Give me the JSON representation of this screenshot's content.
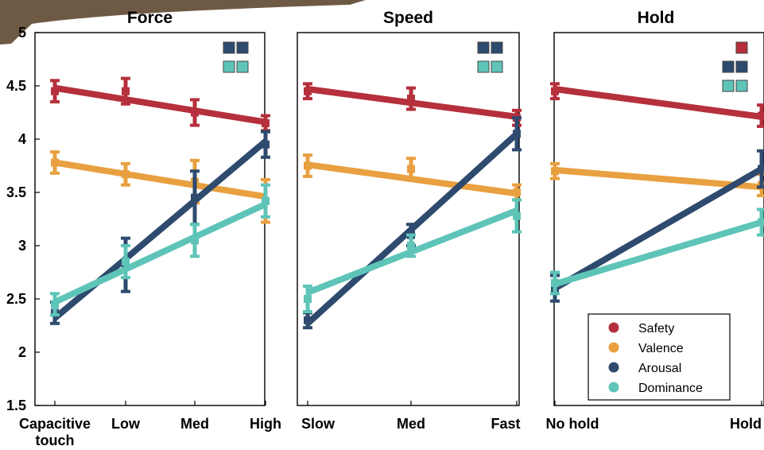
{
  "colors": {
    "Safety": "#B5303C",
    "Valence": "#E8A040",
    "Arousal": "#2E4A6E",
    "Dominance": "#5EC4B8",
    "background_artifact": "#6E5A44"
  },
  "legend": {
    "items": [
      "Safety",
      "Valence",
      "Arousal",
      "Dominance"
    ],
    "placement": "bottom-right of Hold panel"
  },
  "chart_data": [
    {
      "type": "line",
      "title": "Force",
      "categories": [
        "Capacitive touch",
        "Low",
        "Med",
        "High"
      ],
      "ylim": [
        1.5,
        5
      ],
      "yticks": [
        "5",
        "4.5",
        "4",
        "3.5",
        "3",
        "2.5",
        "2",
        "1.5"
      ],
      "series": [
        {
          "name": "Safety",
          "values": [
            4.45,
            4.45,
            4.25,
            4.15
          ],
          "err": [
            0.1,
            0.12,
            0.12,
            0.07
          ],
          "fit": [
            4.48,
            4.16
          ]
        },
        {
          "name": "Valence",
          "values": [
            3.78,
            3.67,
            3.6,
            3.42
          ],
          "err": [
            0.1,
            0.1,
            0.2,
            0.2
          ],
          "fit": [
            3.78,
            3.46
          ]
        },
        {
          "name": "Arousal",
          "values": [
            2.37,
            2.82,
            3.45,
            3.95
          ],
          "err": [
            0.1,
            0.25,
            0.25,
            0.12
          ],
          "fit": [
            2.32,
            3.98
          ]
        },
        {
          "name": "Dominance",
          "values": [
            2.45,
            2.85,
            3.05,
            3.42
          ],
          "err": [
            0.1,
            0.15,
            0.15,
            0.15
          ],
          "fit": [
            2.47,
            3.39
          ]
        }
      ],
      "significance_marks": [
        [
          "Arousal",
          "Arousal"
        ],
        [
          "Dominance",
          "Dominance"
        ]
      ]
    },
    {
      "type": "line",
      "title": "Speed",
      "categories": [
        "Slow",
        "Med",
        "Fast"
      ],
      "ylim": [
        1.5,
        5
      ],
      "series": [
        {
          "name": "Safety",
          "values": [
            4.45,
            4.38,
            4.2
          ],
          "err": [
            0.07,
            0.1,
            0.07
          ],
          "fit": [
            4.47,
            4.21
          ]
        },
        {
          "name": "Valence",
          "values": [
            3.75,
            3.72,
            3.5
          ],
          "err": [
            0.1,
            0.1,
            0.07
          ],
          "fit": [
            3.76,
            3.49
          ]
        },
        {
          "name": "Arousal",
          "values": [
            2.3,
            3.1,
            4.05
          ],
          "err": [
            0.07,
            0.1,
            0.15
          ],
          "fit": [
            2.27,
            4.05
          ]
        },
        {
          "name": "Dominance",
          "values": [
            2.5,
            3.0,
            3.28
          ],
          "err": [
            0.12,
            0.1,
            0.15
          ],
          "fit": [
            2.56,
            3.33
          ]
        }
      ],
      "significance_marks": [
        [
          "Arousal",
          "Arousal"
        ],
        [
          "Dominance",
          "Dominance"
        ]
      ]
    },
    {
      "type": "line",
      "title": "Hold",
      "categories": [
        "No hold",
        "Hold"
      ],
      "ylim": [
        1.5,
        5
      ],
      "series": [
        {
          "name": "Safety",
          "values": [
            4.45,
            4.22
          ],
          "err": [
            0.07,
            0.1
          ],
          "fit": [
            4.47,
            4.21
          ]
        },
        {
          "name": "Valence",
          "values": [
            3.7,
            3.57
          ],
          "err": [
            0.07,
            0.1
          ],
          "fit": [
            3.71,
            3.55
          ]
        },
        {
          "name": "Arousal",
          "values": [
            2.6,
            3.72
          ],
          "err": [
            0.12,
            0.17
          ],
          "fit": [
            2.6,
            3.72
          ]
        },
        {
          "name": "Dominance",
          "values": [
            2.65,
            3.22
          ],
          "err": [
            0.1,
            0.12
          ],
          "fit": [
            2.64,
            3.22
          ]
        }
      ],
      "significance_marks": [
        [
          "Safety"
        ],
        [
          "Arousal",
          "Arousal"
        ],
        [
          "Dominance",
          "Dominance"
        ]
      ]
    }
  ]
}
